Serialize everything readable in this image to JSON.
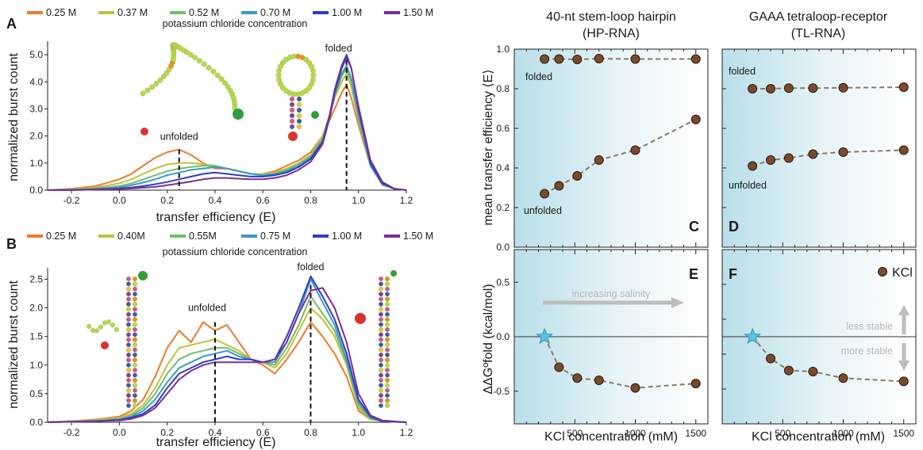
{
  "chart_data": [
    {
      "panel": "A",
      "type": "line",
      "legend_title": "potassium chloride concentration",
      "xlabel": "transfer efficiency (E)",
      "ylabel": "normalized burst count",
      "xlim": [
        -0.3,
        1.2
      ],
      "ylim": [
        0,
        5.5
      ],
      "xticks": [
        "-0.2",
        "0.0",
        "0.2",
        "0.4",
        "0.6",
        "0.8",
        "1.0",
        "1.2"
      ],
      "yticks": [
        "0.0",
        "1.0",
        "2.0",
        "3.0",
        "4.0",
        "5.0"
      ],
      "annotations": {
        "unfolded": "unfolded",
        "folded": "folded"
      },
      "markers": [
        {
          "x": 0.25,
          "y": 1.5
        },
        {
          "x": 0.95,
          "y": 4.8
        }
      ],
      "series": [
        {
          "name": "0.25 M",
          "color": "#ee7a2c",
          "x": [
            -0.3,
            -0.2,
            -0.1,
            0.0,
            0.05,
            0.1,
            0.15,
            0.2,
            0.25,
            0.3,
            0.35,
            0.4,
            0.45,
            0.5,
            0.55,
            0.6,
            0.65,
            0.7,
            0.75,
            0.8,
            0.85,
            0.88,
            0.9,
            0.93,
            0.95,
            0.97,
            1.0,
            1.05,
            1.1,
            1.15,
            1.2
          ],
          "y": [
            0,
            0.05,
            0.15,
            0.4,
            0.6,
            0.9,
            1.2,
            1.4,
            1.5,
            1.3,
            1.0,
            0.8,
            0.8,
            0.7,
            0.6,
            0.6,
            0.7,
            0.9,
            1.1,
            1.4,
            2.0,
            2.6,
            3.0,
            3.6,
            3.9,
            3.4,
            2.4,
            0.9,
            0.2,
            0.05,
            0
          ]
        },
        {
          "name": "0.37 M",
          "color": "#c0c23a",
          "x": [
            -0.3,
            -0.2,
            -0.1,
            0.0,
            0.05,
            0.1,
            0.15,
            0.2,
            0.25,
            0.3,
            0.35,
            0.4,
            0.45,
            0.5,
            0.55,
            0.6,
            0.65,
            0.7,
            0.75,
            0.8,
            0.85,
            0.88,
            0.9,
            0.93,
            0.95,
            0.97,
            1.0,
            1.05,
            1.1,
            1.15,
            1.2
          ],
          "y": [
            0,
            0.03,
            0.1,
            0.25,
            0.4,
            0.6,
            0.8,
            0.95,
            1.0,
            1.0,
            0.95,
            0.9,
            0.8,
            0.7,
            0.6,
            0.6,
            0.65,
            0.8,
            1.0,
            1.3,
            2.0,
            2.8,
            3.4,
            4.0,
            4.3,
            3.8,
            2.6,
            0.9,
            0.2,
            0.05,
            0
          ]
        },
        {
          "name": "0.52 M",
          "color": "#6fbf6a",
          "x": [
            -0.3,
            -0.2,
            -0.1,
            0.0,
            0.05,
            0.1,
            0.15,
            0.2,
            0.25,
            0.3,
            0.35,
            0.4,
            0.45,
            0.5,
            0.55,
            0.6,
            0.65,
            0.7,
            0.75,
            0.8,
            0.85,
            0.88,
            0.9,
            0.93,
            0.95,
            0.97,
            1.0,
            1.05,
            1.1,
            1.15,
            1.2
          ],
          "y": [
            0,
            0.02,
            0.06,
            0.15,
            0.25,
            0.4,
            0.55,
            0.7,
            0.8,
            0.85,
            0.9,
            0.9,
            0.8,
            0.7,
            0.6,
            0.55,
            0.6,
            0.75,
            0.95,
            1.25,
            1.9,
            2.8,
            3.5,
            4.2,
            4.5,
            4.0,
            2.7,
            0.9,
            0.2,
            0.05,
            0
          ]
        },
        {
          "name": "0.70 M",
          "color": "#3a9ac4",
          "x": [
            -0.3,
            -0.2,
            -0.1,
            0.0,
            0.05,
            0.1,
            0.15,
            0.2,
            0.25,
            0.3,
            0.35,
            0.4,
            0.45,
            0.5,
            0.55,
            0.6,
            0.65,
            0.7,
            0.75,
            0.8,
            0.85,
            0.88,
            0.9,
            0.93,
            0.95,
            0.97,
            1.0,
            1.05,
            1.1,
            1.15,
            1.2
          ],
          "y": [
            0,
            0.01,
            0.04,
            0.1,
            0.18,
            0.28,
            0.4,
            0.55,
            0.65,
            0.75,
            0.8,
            0.85,
            0.8,
            0.7,
            0.6,
            0.55,
            0.6,
            0.7,
            0.9,
            1.2,
            1.8,
            2.7,
            3.5,
            4.3,
            4.6,
            4.1,
            2.8,
            0.9,
            0.2,
            0.05,
            0
          ]
        },
        {
          "name": "1.00 M",
          "color": "#2c3fc4",
          "x": [
            -0.3,
            -0.2,
            -0.1,
            0.0,
            0.05,
            0.1,
            0.15,
            0.2,
            0.25,
            0.3,
            0.35,
            0.4,
            0.45,
            0.5,
            0.55,
            0.6,
            0.65,
            0.7,
            0.75,
            0.8,
            0.85,
            0.88,
            0.9,
            0.93,
            0.95,
            0.97,
            1.0,
            1.05,
            1.1,
            1.15,
            1.2
          ],
          "y": [
            0,
            0.01,
            0.03,
            0.06,
            0.1,
            0.15,
            0.22,
            0.3,
            0.4,
            0.5,
            0.6,
            0.65,
            0.6,
            0.55,
            0.5,
            0.5,
            0.55,
            0.65,
            0.85,
            1.15,
            1.8,
            2.8,
            3.7,
            4.6,
            5.0,
            4.5,
            3.0,
            1.0,
            0.25,
            0.05,
            0
          ]
        },
        {
          "name": "1.50 M",
          "color": "#7b2e96",
          "x": [
            -0.3,
            -0.2,
            -0.1,
            0.0,
            0.05,
            0.1,
            0.15,
            0.2,
            0.25,
            0.3,
            0.35,
            0.4,
            0.45,
            0.5,
            0.55,
            0.6,
            0.65,
            0.7,
            0.75,
            0.8,
            0.85,
            0.88,
            0.9,
            0.93,
            0.95,
            0.97,
            1.0,
            1.05,
            1.1,
            1.15,
            1.2
          ],
          "y": [
            0,
            0,
            0.02,
            0.04,
            0.06,
            0.09,
            0.12,
            0.18,
            0.25,
            0.32,
            0.4,
            0.45,
            0.45,
            0.42,
            0.4,
            0.4,
            0.45,
            0.55,
            0.75,
            1.05,
            1.7,
            2.7,
            3.6,
            4.5,
            4.9,
            4.5,
            3.1,
            1.1,
            0.3,
            0.05,
            0
          ]
        }
      ]
    },
    {
      "panel": "B",
      "type": "line",
      "legend_title": "potassium chloride concentration",
      "xlabel": "transfer efficiency (E)",
      "ylabel": "normalized burst count",
      "xlim": [
        -0.3,
        1.2
      ],
      "ylim": [
        0,
        2.7
      ],
      "xticks": [
        "-0.2",
        "0.0",
        "0.2",
        "0.4",
        "0.6",
        "0.8",
        "1.0",
        "1.2"
      ],
      "yticks": [
        "0.0",
        "0.5",
        "1.0",
        "1.5",
        "2.0",
        "2.5"
      ],
      "annotations": {
        "unfolded": "unfolded",
        "folded": "folded"
      },
      "markers": [
        {
          "x": 0.4,
          "y": 1.75
        },
        {
          "x": 0.8,
          "y": 2.4
        }
      ],
      "series": [
        {
          "name": "0.25 M",
          "color": "#ee7a2c",
          "x": [
            -0.3,
            -0.2,
            -0.1,
            0.0,
            0.05,
            0.1,
            0.15,
            0.2,
            0.25,
            0.3,
            0.35,
            0.4,
            0.45,
            0.5,
            0.55,
            0.6,
            0.65,
            0.7,
            0.75,
            0.8,
            0.85,
            0.9,
            0.95,
            1.0,
            1.05,
            1.1,
            1.2
          ],
          "y": [
            0,
            0.02,
            0.05,
            0.1,
            0.2,
            0.4,
            0.8,
            1.3,
            1.6,
            1.4,
            1.75,
            1.6,
            1.7,
            1.4,
            1.1,
            1.0,
            0.85,
            1.1,
            1.4,
            1.75,
            1.5,
            1.2,
            0.8,
            0.2,
            0.05,
            0.02,
            0
          ]
        },
        {
          "name": "0.40M",
          "color": "#c0c23a",
          "x": [
            -0.3,
            -0.2,
            -0.1,
            0.0,
            0.05,
            0.1,
            0.15,
            0.2,
            0.25,
            0.3,
            0.35,
            0.4,
            0.45,
            0.5,
            0.55,
            0.6,
            0.65,
            0.7,
            0.75,
            0.8,
            0.85,
            0.9,
            0.95,
            1.0,
            1.05,
            1.1,
            1.2
          ],
          "y": [
            0,
            0.02,
            0.04,
            0.08,
            0.15,
            0.3,
            0.6,
            1.0,
            1.3,
            1.35,
            1.4,
            1.45,
            1.35,
            1.25,
            1.1,
            1.05,
            0.95,
            1.2,
            1.6,
            2.0,
            1.8,
            1.5,
            1.0,
            0.25,
            0.05,
            0.02,
            0
          ]
        },
        {
          "name": "0.55M",
          "color": "#6fbf6a",
          "x": [
            -0.3,
            -0.2,
            -0.1,
            0.0,
            0.05,
            0.1,
            0.15,
            0.2,
            0.25,
            0.3,
            0.35,
            0.4,
            0.45,
            0.5,
            0.55,
            0.6,
            0.65,
            0.7,
            0.75,
            0.8,
            0.85,
            0.9,
            0.95,
            1.0,
            1.05,
            1.1,
            1.2
          ],
          "y": [
            0,
            0.01,
            0.03,
            0.06,
            0.12,
            0.25,
            0.5,
            0.85,
            1.1,
            1.2,
            1.25,
            1.3,
            1.3,
            1.2,
            1.1,
            1.05,
            1.0,
            1.3,
            1.7,
            2.2,
            1.9,
            1.6,
            1.05,
            0.3,
            0.06,
            0.02,
            0
          ]
        },
        {
          "name": "0.75 M",
          "color": "#3a9ac4",
          "x": [
            -0.3,
            -0.2,
            -0.1,
            0.0,
            0.05,
            0.1,
            0.15,
            0.2,
            0.25,
            0.3,
            0.35,
            0.4,
            0.45,
            0.5,
            0.55,
            0.6,
            0.65,
            0.7,
            0.75,
            0.8,
            0.85,
            0.9,
            0.95,
            1.0,
            1.05,
            1.1,
            1.2
          ],
          "y": [
            0,
            0.01,
            0.02,
            0.05,
            0.1,
            0.2,
            0.4,
            0.7,
            0.95,
            1.05,
            1.15,
            1.2,
            1.25,
            1.15,
            1.1,
            1.05,
            1.05,
            1.4,
            1.9,
            2.5,
            2.1,
            1.7,
            1.1,
            0.35,
            0.08,
            0.02,
            0
          ]
        },
        {
          "name": "1.00 M",
          "color": "#2c3fc4",
          "x": [
            -0.3,
            -0.2,
            -0.1,
            0.0,
            0.05,
            0.1,
            0.15,
            0.2,
            0.25,
            0.3,
            0.35,
            0.4,
            0.45,
            0.5,
            0.55,
            0.6,
            0.65,
            0.7,
            0.75,
            0.8,
            0.85,
            0.9,
            0.95,
            1.0,
            1.05,
            1.1,
            1.2
          ],
          "y": [
            0,
            0.01,
            0.02,
            0.04,
            0.08,
            0.15,
            0.3,
            0.6,
            0.85,
            0.95,
            1.05,
            1.1,
            1.15,
            1.1,
            1.1,
            1.05,
            1.1,
            1.5,
            2.0,
            2.55,
            2.2,
            1.8,
            1.2,
            0.4,
            0.1,
            0.02,
            0
          ]
        },
        {
          "name": "1.50 M",
          "color": "#7b2e96",
          "x": [
            -0.3,
            -0.2,
            -0.1,
            0.0,
            0.05,
            0.1,
            0.15,
            0.2,
            0.25,
            0.3,
            0.35,
            0.4,
            0.45,
            0.5,
            0.55,
            0.6,
            0.65,
            0.7,
            0.75,
            0.8,
            0.85,
            0.9,
            0.95,
            1.0,
            1.05,
            1.1,
            1.2
          ],
          "y": [
            0,
            0.01,
            0.02,
            0.03,
            0.06,
            0.12,
            0.25,
            0.5,
            0.75,
            0.9,
            1.0,
            1.05,
            1.05,
            1.05,
            1.05,
            1.05,
            1.1,
            1.4,
            1.9,
            2.3,
            2.35,
            2.0,
            1.4,
            0.5,
            0.12,
            0.03,
            0
          ]
        }
      ]
    },
    {
      "panel": "C",
      "type": "scatter",
      "title": "40-nt stem-loop hairpin",
      "subtitle": "(HP-RNA)",
      "ylabel": "mean transfer efficiency ⟨E⟩",
      "xlim": [
        0,
        1600
      ],
      "ylim": [
        0,
        1.0
      ],
      "yticks": [
        "0.0",
        "0.2",
        "0.4",
        "0.6",
        "0.8",
        "1.0"
      ],
      "annotations": {
        "folded": "folded",
        "unfolded": "unfolded"
      },
      "series": [
        {
          "name": "folded",
          "x": [
            250,
            370,
            520,
            700,
            1000,
            1500
          ],
          "y": [
            0.95,
            0.95,
            0.948,
            0.952,
            0.95,
            0.95
          ]
        },
        {
          "name": "unfolded",
          "x": [
            250,
            370,
            520,
            700,
            1000,
            1500
          ],
          "y": [
            0.27,
            0.31,
            0.36,
            0.44,
            0.49,
            0.645
          ]
        }
      ]
    },
    {
      "panel": "D",
      "type": "scatter",
      "title": "GAAA tetraloop-receptor",
      "subtitle": "(TL-RNA)",
      "xlim": [
        0,
        1600
      ],
      "ylim": [
        0,
        1.0
      ],
      "annotations": {
        "folded": "folded",
        "unfolded": "unfolded"
      },
      "series": [
        {
          "name": "folded",
          "x": [
            250,
            400,
            550,
            750,
            1000,
            1500
          ],
          "y": [
            0.8,
            0.8,
            0.803,
            0.803,
            0.805,
            0.808
          ]
        },
        {
          "name": "unfolded",
          "x": [
            250,
            400,
            550,
            750,
            1000,
            1500
          ],
          "y": [
            0.41,
            0.44,
            0.45,
            0.47,
            0.48,
            0.49
          ]
        }
      ]
    },
    {
      "panel": "E",
      "type": "scatter",
      "ylabel": "ΔΔGºfold (kcal/mol)",
      "xlabel": "KCl concentration (mM)",
      "xlim": [
        0,
        1600
      ],
      "ylim": [
        -0.8,
        0.8
      ],
      "xticks": [
        "500",
        "1000",
        "1500"
      ],
      "yticks": [
        "0.5",
        "0.0",
        "-0.5"
      ],
      "annotation": "increasing salinity",
      "reference": {
        "x": 250,
        "y": 0
      },
      "series": [
        {
          "name": "KCl",
          "x": [
            370,
            520,
            700,
            1000,
            1500
          ],
          "y": [
            -0.28,
            -0.38,
            -0.4,
            -0.47,
            -0.43
          ]
        }
      ]
    },
    {
      "panel": "F",
      "type": "scatter",
      "xlabel": "KCl concentration (mM)",
      "xlim": [
        0,
        1600
      ],
      "ylim": [
        -0.8,
        0.8
      ],
      "xticks": [
        "500",
        "1000",
        "1500"
      ],
      "legend": "KCl",
      "annotations": {
        "less": "less stable",
        "more": "more stable"
      },
      "reference": {
        "x": 250,
        "y": 0
      },
      "series": [
        {
          "name": "KCl",
          "x": [
            400,
            550,
            750,
            1000,
            1500
          ],
          "y": [
            -0.2,
            -0.31,
            -0.32,
            -0.38,
            -0.41
          ]
        }
      ]
    }
  ],
  "colors": {
    "marker_fill": "#7a4a2a",
    "marker_line": "#8a7a66",
    "star": "#5ec3e0",
    "arrow_gray": "#bdbdbd",
    "bg_gradient_start": "#b9dfe9"
  }
}
